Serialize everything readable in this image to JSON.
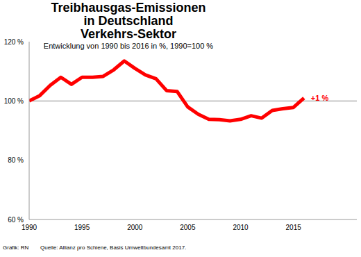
{
  "chart_data": {
    "type": "line",
    "title": [
      "Treibhausgas-Emissionen",
      "in Deutschland",
      "Verkehrs-Sektor"
    ],
    "subtitle": "Entwicklung von 1990 bis 2016 in %, 1990=100 %",
    "x": [
      1990,
      1991,
      1992,
      1993,
      1994,
      1995,
      1996,
      1997,
      1998,
      1999,
      2000,
      2001,
      2002,
      2003,
      2004,
      2005,
      2006,
      2007,
      2008,
      2009,
      2010,
      2011,
      2012,
      2013,
      2014,
      2015,
      2016
    ],
    "values": [
      100,
      101.8,
      105.3,
      108,
      105.6,
      108,
      108,
      108.3,
      110.5,
      113.5,
      111,
      108.8,
      107.5,
      103.5,
      103.2,
      98,
      95.5,
      93.8,
      93.7,
      93.3,
      93.8,
      95,
      94.2,
      96.8,
      97.4,
      97.8,
      101
    ],
    "color": "#ff0000",
    "xlim": [
      1990,
      2021
    ],
    "xticks": [
      1990,
      1995,
      2000,
      2005,
      2010,
      2015
    ],
    "ylim": [
      60,
      120
    ],
    "yticks": [
      {
        "value": 60,
        "label": "60 %"
      },
      {
        "value": 80,
        "label": "80 %"
      },
      {
        "value": 100,
        "label": "100 %"
      },
      {
        "value": 120,
        "label": "120 %"
      }
    ],
    "baseline": 100,
    "annotations": [
      {
        "text": "+1 %",
        "x": 2016,
        "y": 101
      }
    ],
    "credit": "Grafik: RN",
    "source": "Quelle: Allianz pro Schiene, Basis Umweltbundesamt 2017."
  }
}
